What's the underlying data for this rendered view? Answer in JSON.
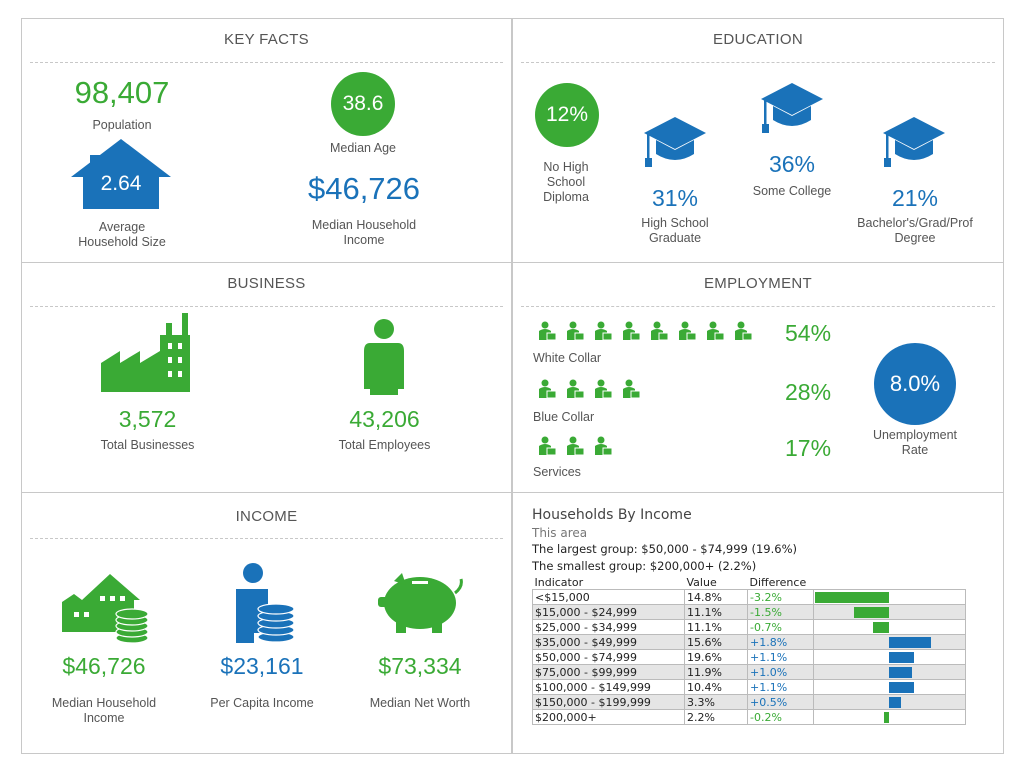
{
  "colors": {
    "green": "#3aaa35",
    "blue": "#1a72b9"
  },
  "key_facts": {
    "title": "KEY FACTS",
    "population_value": "98,407",
    "population_label": "Population",
    "median_age_value": "38.6",
    "median_age_label": "Median Age",
    "household_size_value": "2.64",
    "household_size_label": "Average Household Size",
    "median_income_value": "$46,726",
    "median_income_label": "Median Household Income"
  },
  "education": {
    "title": "EDUCATION",
    "items": [
      {
        "value": "12%",
        "label": "No High School Diploma"
      },
      {
        "value": "31%",
        "label": "High School Graduate"
      },
      {
        "value": "36%",
        "label": "Some College"
      },
      {
        "value": "21%",
        "label": "Bachelor's/Grad/Prof Degree"
      }
    ]
  },
  "business": {
    "title": "BUSINESS",
    "businesses_value": "3,572",
    "businesses_label": "Total Businesses",
    "employees_value": "43,206",
    "employees_label": "Total Employees"
  },
  "employment": {
    "title": "EMPLOYMENT",
    "white_collar_value": "54%",
    "white_collar_label": "White Collar",
    "blue_collar_value": "28%",
    "blue_collar_label": "Blue Collar",
    "services_value": "17%",
    "services_label": "Services",
    "unemployment_value": "8.0%",
    "unemployment_label": "Unemployment Rate"
  },
  "income": {
    "title": "INCOME",
    "median_household_value": "$46,726",
    "median_household_label": "Median Household Income",
    "per_capita_value": "$23,161",
    "per_capita_label": "Per Capita Income",
    "net_worth_value": "$73,334",
    "net_worth_label": "Median Net Worth"
  },
  "households": {
    "title": "Households By Income",
    "subtitle": "This area",
    "largest": "The largest group: $50,000 - $74,999 (19.6%)",
    "smallest": "The smallest group: $200,000+ (2.2%)",
    "headers": [
      "Indicator",
      "Value",
      "Difference"
    ],
    "rows": [
      {
        "indicator": "<$15,000",
        "value": "14.8%",
        "difference": "-3.2%",
        "diff": -3.2
      },
      {
        "indicator": "$15,000 - $24,999",
        "value": "11.1%",
        "difference": "-1.5%",
        "diff": -1.5
      },
      {
        "indicator": "$25,000 - $34,999",
        "value": "11.1%",
        "difference": "-0.7%",
        "diff": -0.7
      },
      {
        "indicator": "$35,000 - $49,999",
        "value": "15.6%",
        "difference": "+1.8%",
        "diff": 1.8
      },
      {
        "indicator": "$50,000 - $74,999",
        "value": "19.6%",
        "difference": "+1.1%",
        "diff": 1.1
      },
      {
        "indicator": "$75,000 - $99,999",
        "value": "11.9%",
        "difference": "+1.0%",
        "diff": 1.0
      },
      {
        "indicator": "$100,000 - $149,999",
        "value": "10.4%",
        "difference": "+1.1%",
        "diff": 1.1
      },
      {
        "indicator": "$150,000 - $199,999",
        "value": "3.3%",
        "difference": "+0.5%",
        "diff": 0.5
      },
      {
        "indicator": "$200,000+",
        "value": "2.2%",
        "difference": "-0.2%",
        "diff": -0.2
      }
    ]
  }
}
